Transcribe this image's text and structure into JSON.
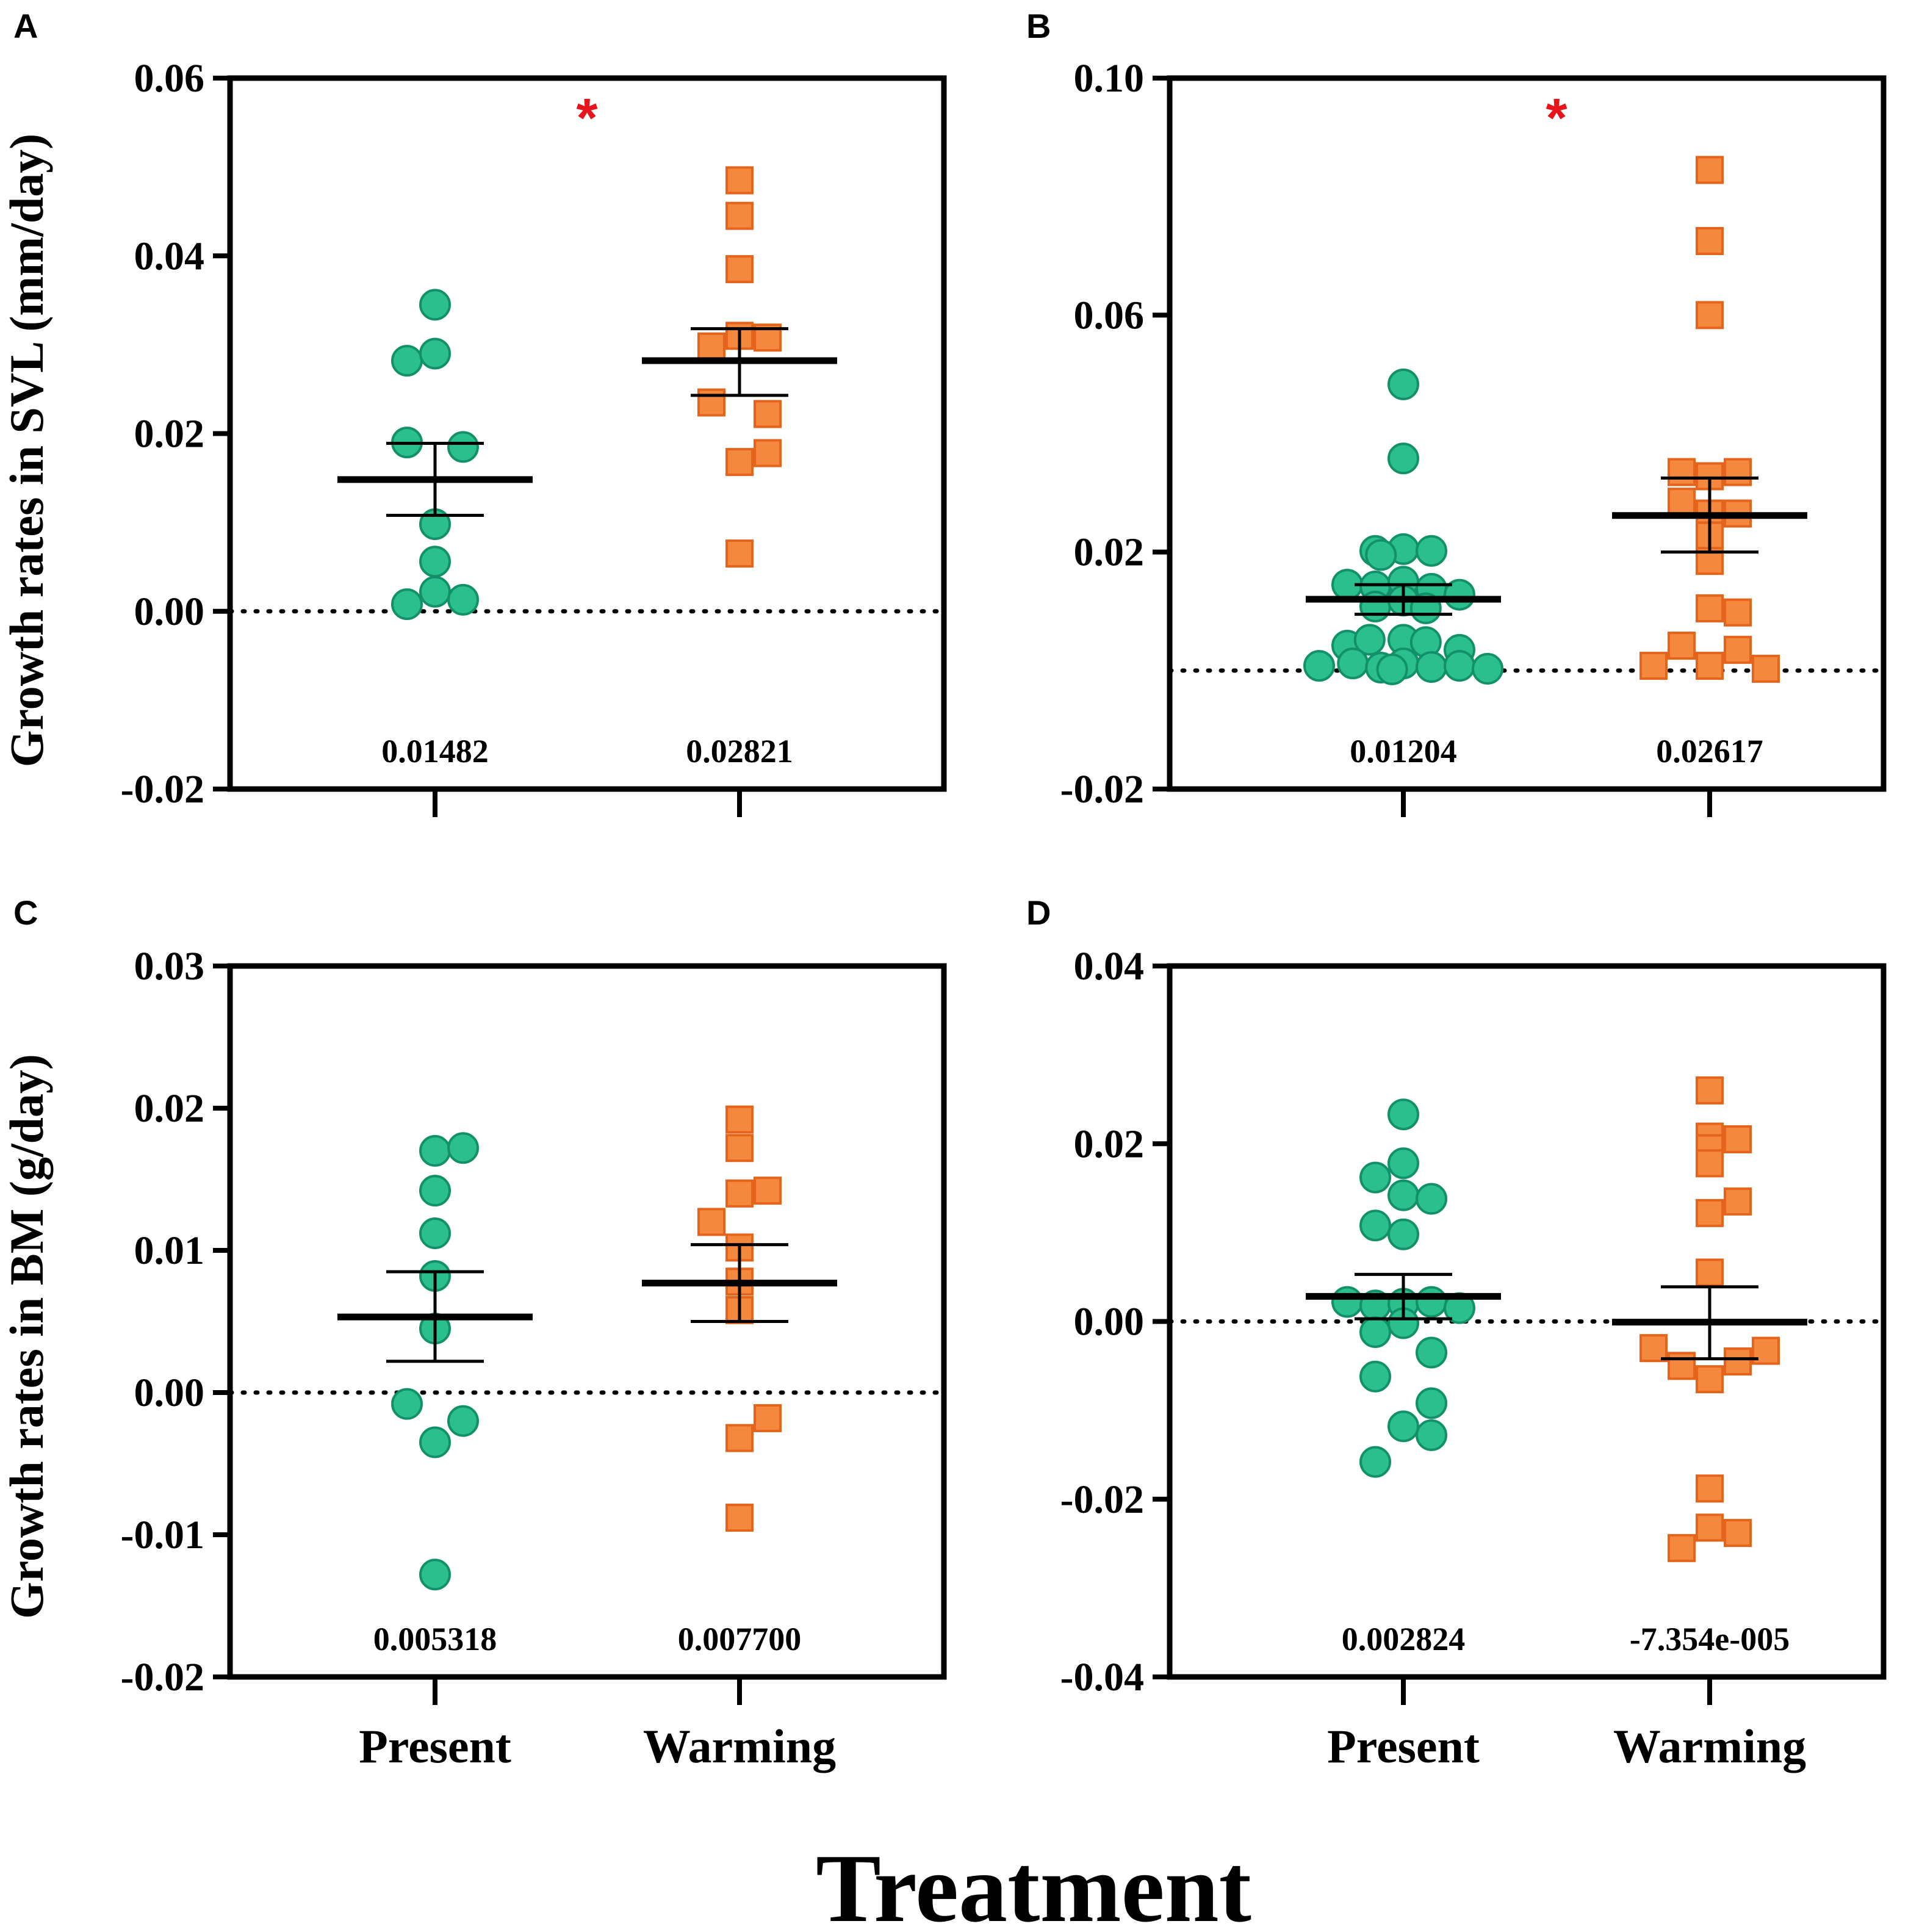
{
  "figure": {
    "xlabel": "Treatment",
    "ylabel_top": "Growth rates in SVL (mm/day)",
    "ylabel_bottom": "Growth rates in BM (g/day)"
  },
  "colors": {
    "present_fill": "#2bbf8e",
    "present_stroke": "#12906a",
    "warming_fill": "#f5883f",
    "warming_stroke": "#e5641c",
    "significance": "#e8141b",
    "axis": "#000000"
  },
  "markers": {
    "present": "circle",
    "warming": "square"
  },
  "chart_data": [
    {
      "panel": "A",
      "type": "scatter",
      "categories": [
        "Present",
        "Warming"
      ],
      "ylim": [
        -0.02,
        0.06
      ],
      "yticks": [
        "-0.02",
        "0.00",
        "0.02",
        "0.04",
        "0.06"
      ],
      "reference_line": 0,
      "significance": "*",
      "series": [
        {
          "name": "Present",
          "mean": 0.01482,
          "sem_upper": 0.0189,
          "sem_lower": 0.0108,
          "mean_label": "0.01482",
          "points": [
            [
              -0.5,
              0.0282
            ],
            [
              0.0,
              0.0345
            ],
            [
              0.0,
              0.029
            ],
            [
              -0.5,
              0.019
            ],
            [
              0.5,
              0.0185
            ],
            [
              0.0,
              0.0098
            ],
            [
              0.0,
              0.0056
            ],
            [
              0.0,
              0.0022
            ],
            [
              -0.5,
              0.0008
            ],
            [
              0.5,
              0.0013
            ]
          ]
        },
        {
          "name": "Warming",
          "mean": 0.02821,
          "sem_upper": 0.0318,
          "sem_lower": 0.0243,
          "mean_label": "0.02821",
          "points": [
            [
              0.0,
              0.0485
            ],
            [
              0.0,
              0.0445
            ],
            [
              0.0,
              0.0385
            ],
            [
              -0.5,
              0.0298
            ],
            [
              0.0,
              0.031
            ],
            [
              0.5,
              0.0308
            ],
            [
              -0.5,
              0.0235
            ],
            [
              0.5,
              0.0222
            ],
            [
              0.0,
              0.0168
            ],
            [
              0.5,
              0.0178
            ],
            [
              0.0,
              0.0065
            ]
          ]
        }
      ]
    },
    {
      "panel": "B",
      "type": "scatter",
      "categories": [
        "Present",
        "Warming"
      ],
      "ylim": [
        -0.02,
        0.1
      ],
      "yticks": [
        "-0.02",
        "0.02",
        "0.06",
        "0.10"
      ],
      "reference_line": 0,
      "significance": "*",
      "series": [
        {
          "name": "Present",
          "mean": 0.01204,
          "sem_upper": 0.0145,
          "sem_lower": 0.0095,
          "mean_label": "0.01204",
          "points": [
            [
              0.0,
              0.0483
            ],
            [
              0.0,
              0.0358
            ],
            [
              -0.5,
              0.0202
            ],
            [
              0.0,
              0.0205
            ],
            [
              0.5,
              0.0202
            ],
            [
              -0.4,
              0.0195
            ],
            [
              -1.0,
              0.0145
            ],
            [
              -0.5,
              0.0142
            ],
            [
              0.0,
              0.015
            ],
            [
              0.5,
              0.0138
            ],
            [
              1.0,
              0.0128
            ],
            [
              -0.5,
              0.0108
            ],
            [
              0.0,
              0.0118
            ],
            [
              0.4,
              0.0105
            ],
            [
              -1.0,
              0.0042
            ],
            [
              -0.6,
              0.0052
            ],
            [
              0.0,
              0.0052
            ],
            [
              0.4,
              0.0048
            ],
            [
              1.0,
              0.0035
            ],
            [
              -1.5,
              0.0008
            ],
            [
              -0.9,
              0.0012
            ],
            [
              -0.4,
              0.0005
            ],
            [
              0.0,
              0.0012
            ],
            [
              0.5,
              0.0006
            ],
            [
              1.0,
              0.0008
            ],
            [
              1.5,
              0.0003
            ],
            [
              -0.2,
              0.0002
            ]
          ]
        },
        {
          "name": "Warming",
          "mean": 0.02617,
          "sem_upper": 0.0325,
          "sem_lower": 0.02,
          "mean_label": "0.02617",
          "points": [
            [
              0.0,
              0.0845
            ],
            [
              0.0,
              0.0725
            ],
            [
              0.0,
              0.06
            ],
            [
              -0.5,
              0.0335
            ],
            [
              0.0,
              0.0328
            ],
            [
              0.5,
              0.0335
            ],
            [
              -0.5,
              0.0285
            ],
            [
              0.0,
              0.0265
            ],
            [
              0.5,
              0.0265
            ],
            [
              0.0,
              0.0228
            ],
            [
              0.0,
              0.0185
            ],
            [
              0.0,
              0.0105
            ],
            [
              0.5,
              0.0098
            ],
            [
              -0.5,
              0.0042
            ],
            [
              0.5,
              0.0035
            ],
            [
              -1.0,
              0.0008
            ],
            [
              0.0,
              0.0008
            ],
            [
              1.0,
              0.0003
            ]
          ]
        }
      ]
    },
    {
      "panel": "C",
      "type": "scatter",
      "categories": [
        "Present",
        "Warming"
      ],
      "ylim": [
        -0.02,
        0.03
      ],
      "yticks": [
        "-0.02",
        "-0.01",
        "0.00",
        "0.01",
        "0.02",
        "0.03"
      ],
      "reference_line": 0,
      "significance": "",
      "series": [
        {
          "name": "Present",
          "mean": 0.005318,
          "sem_upper": 0.0085,
          "sem_lower": 0.0022,
          "mean_label": "0.005318",
          "points": [
            [
              0.0,
              0.017
            ],
            [
              0.5,
              0.0172
            ],
            [
              0.0,
              0.0142
            ],
            [
              0.0,
              0.0112
            ],
            [
              0.0,
              0.0082
            ],
            [
              0.0,
              0.0045
            ],
            [
              -0.5,
              -0.0008
            ],
            [
              0.5,
              -0.002
            ],
            [
              0.0,
              -0.0035
            ],
            [
              0.0,
              -0.0128
            ]
          ]
        },
        {
          "name": "Warming",
          "mean": 0.0077,
          "sem_upper": 0.0104,
          "sem_lower": 0.005,
          "mean_label": "0.007700",
          "points": [
            [
              0.0,
              0.0192
            ],
            [
              0.0,
              0.0172
            ],
            [
              0.0,
              0.014
            ],
            [
              0.5,
              0.0142
            ],
            [
              -0.5,
              0.012
            ],
            [
              0.0,
              0.0102
            ],
            [
              0.0,
              0.0078
            ],
            [
              0.0,
              0.0058
            ],
            [
              0.5,
              -0.0018
            ],
            [
              0.0,
              -0.0032
            ],
            [
              0.0,
              -0.0088
            ]
          ]
        }
      ]
    },
    {
      "panel": "D",
      "type": "scatter",
      "categories": [
        "Present",
        "Warming"
      ],
      "ylim": [
        -0.04,
        0.04
      ],
      "yticks": [
        "-0.04",
        "-0.02",
        "0.00",
        "0.02",
        "0.04"
      ],
      "reference_line": 0,
      "significance": "",
      "series": [
        {
          "name": "Present",
          "mean": 0.002824,
          "sem_upper": 0.0053,
          "sem_lower": 0.0003,
          "mean_label": "0.002824",
          "points": [
            [
              0.0,
              0.0233
            ],
            [
              -0.5,
              0.0162
            ],
            [
              0.0,
              0.0178
            ],
            [
              0.0,
              0.0142
            ],
            [
              0.5,
              0.0138
            ],
            [
              -0.5,
              0.0108
            ],
            [
              0.0,
              0.0098
            ],
            [
              -1.0,
              0.0022
            ],
            [
              -0.5,
              0.0018
            ],
            [
              0.0,
              0.002
            ],
            [
              0.5,
              0.0022
            ],
            [
              1.0,
              0.0015
            ],
            [
              0.0,
              -0.0002
            ],
            [
              -0.5,
              -0.0012
            ],
            [
              0.5,
              -0.0035
            ],
            [
              -0.5,
              -0.0062
            ],
            [
              0.5,
              -0.0092
            ],
            [
              0.0,
              -0.0118
            ],
            [
              0.5,
              -0.0128
            ],
            [
              -0.5,
              -0.0158
            ]
          ]
        },
        {
          "name": "Warming",
          "mean": -7.354e-05,
          "sem_upper": 0.0039,
          "sem_lower": -0.0042,
          "mean_label": "-7.354e-005",
          "points": [
            [
              0.0,
              0.026
            ],
            [
              0.0,
              0.0208
            ],
            [
              0.0,
              0.0195
            ],
            [
              0.5,
              0.0205
            ],
            [
              0.0,
              0.0178
            ],
            [
              0.5,
              0.0135
            ],
            [
              0.0,
              0.0122
            ],
            [
              0.0,
              0.0055
            ],
            [
              -1.0,
              -0.003
            ],
            [
              1.0,
              -0.0033
            ],
            [
              -0.5,
              -0.005
            ],
            [
              0.5,
              -0.0045
            ],
            [
              0.0,
              -0.0065
            ],
            [
              0.0,
              -0.0188
            ],
            [
              0.0,
              -0.0232
            ],
            [
              0.5,
              -0.0238
            ],
            [
              -0.5,
              -0.0255
            ]
          ]
        }
      ]
    }
  ]
}
